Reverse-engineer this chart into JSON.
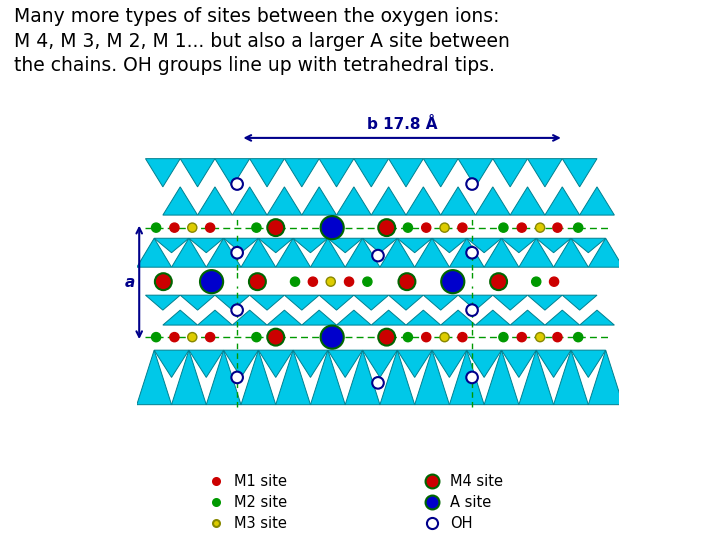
{
  "title_lines": [
    "Many more types of sites between the oxygen ions:",
    "M 4, M 3, M 2, M 1... but also a larger A site between",
    "the chains. OH groups line up with tetrahedral tips."
  ],
  "title_font": "Comic Sans MS",
  "title_fontsize": 13.5,
  "bg_color": "#ffffff",
  "cyan_color": "#00C8E8",
  "cyan_edge": "#008090",
  "arrow_color": "#00008B",
  "b_label": "b 17.8 Å",
  "a_label": "a",
  "c_red": "#cc0000",
  "c_green": "#009900",
  "c_yellow": "#ddcc00",
  "c_blue": "#0000cc",
  "c_white": "#ffffff",
  "c_dark_green_edge": "#006600",
  "c_navy": "#00008B",
  "c_yellow_edge": "#888800"
}
